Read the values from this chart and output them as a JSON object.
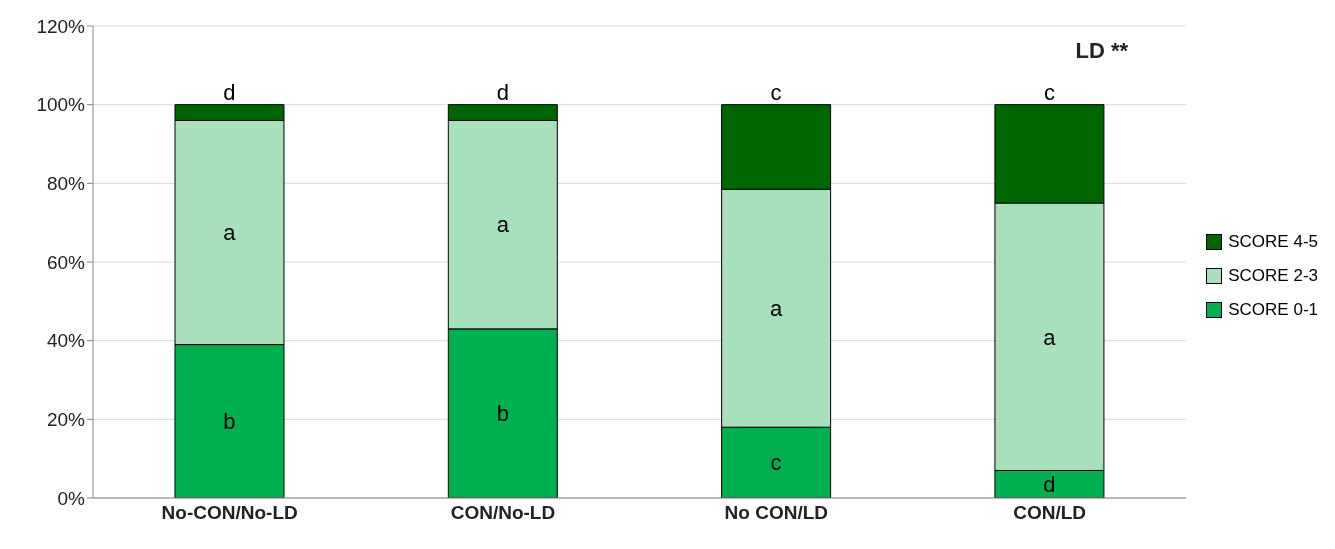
{
  "chart_data": {
    "type": "bar",
    "stacked": true,
    "categories": [
      "No-CON/No-LD",
      "CON/No-LD",
      "No CON/LD",
      "CON/LD"
    ],
    "series": [
      {
        "name": "SCORE 0-1",
        "color": "#00b050",
        "values": [
          39,
          43,
          18,
          7
        ],
        "value_labels": [
          "b",
          "b",
          "c",
          "d"
        ]
      },
      {
        "name": "SCORE 2-3",
        "color": "#a8e0bc",
        "values": [
          57,
          53,
          60.5,
          68
        ],
        "value_labels": [
          "a",
          "a",
          "a",
          "a"
        ]
      },
      {
        "name": "SCORE 4-5",
        "color": "#006600",
        "values": [
          4,
          4,
          21.5,
          25
        ],
        "value_labels": [
          "d",
          "d",
          "c",
          "c"
        ]
      }
    ],
    "ylim": [
      0,
      120
    ],
    "yticks": [
      {
        "value": 0,
        "label": "0%"
      },
      {
        "value": 20,
        "label": "20%"
      },
      {
        "value": 40,
        "label": "40%"
      },
      {
        "value": 60,
        "label": "60%"
      },
      {
        "value": 80,
        "label": "80%"
      },
      {
        "value": 100,
        "label": "100%"
      },
      {
        "value": 120,
        "label": "120%"
      }
    ],
    "grid": "y",
    "legend": "right",
    "annotations": [
      "LD **"
    ]
  }
}
